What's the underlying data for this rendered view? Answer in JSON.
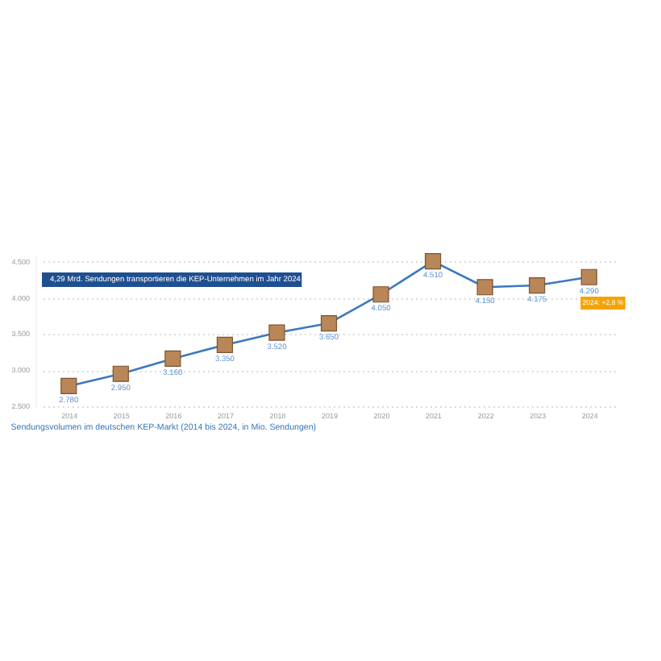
{
  "chart_data": {
    "type": "line",
    "categories": [
      "2014",
      "2015",
      "2016",
      "2017",
      "2018",
      "2019",
      "2020",
      "2021",
      "2022",
      "2023",
      "2024"
    ],
    "values": [
      2780,
      2950,
      3160,
      3350,
      3520,
      3650,
      4050,
      4510,
      4150,
      4175,
      4290
    ],
    "value_labels": [
      "2.780",
      "2.950",
      "3.160",
      "3.350",
      "3.520",
      "3.650",
      "4.050",
      "4.510",
      "4.150",
      "4.175",
      "4.290"
    ],
    "color": "#3c78bf",
    "marker": "square",
    "line_style": "solid",
    "ylim": [
      2500,
      4600
    ],
    "yticks": [
      {
        "value": 2500,
        "label": "2.500"
      },
      {
        "value": 3000,
        "label": "3.000"
      },
      {
        "value": 3500,
        "label": "3.500"
      },
      {
        "value": 4000,
        "label": "4.000"
      },
      {
        "value": 4500,
        "label": "4.500"
      }
    ],
    "grid": "y",
    "annotations": [
      "4,29 Mrd. Sendungen transportieren die KEP-Unternehmen im Jahr 2024",
      "2024: +2,8 %",
      "Sendungsvolumen im deutschen KEP-Markt (2014 bis 2024, in Mio. Sendungen)"
    ]
  }
}
